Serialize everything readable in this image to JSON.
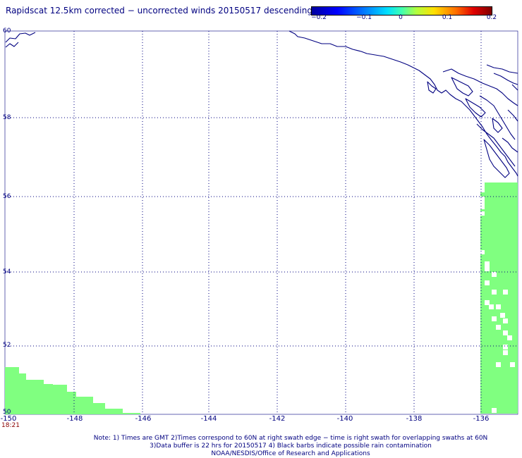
{
  "title": "Rapidscat 12.5km corrected − uncorrected winds 20150517 descending",
  "colorbar": {
    "labels": [
      "−0.2",
      "−0.1",
      "0",
      "0.1",
      "0.2"
    ],
    "colors": [
      "#0000a0",
      "#0000ff",
      "#00e0ff",
      "#b0ff40",
      "#ffe000",
      "#ff7000",
      "#800000"
    ]
  },
  "map": {
    "lat_labels": [
      "60",
      "58",
      "56",
      "54",
      "52",
      "50"
    ],
    "lon_labels": [
      "-150",
      "-148",
      "-146",
      "-144",
      "-142",
      "-140",
      "-138",
      "-136"
    ],
    "lat_range": [
      50,
      60
    ],
    "lon_range": [
      -150,
      -135
    ],
    "swath_color": "#80ff80",
    "coast_color": "#000080",
    "grid_color": "#000080",
    "time_label": "18:21"
  },
  "notes": {
    "line1": "Note: 1) Times are GMT 2)Times correspond to 60N at right swath edge − time is right swath for overlapping swaths at 60N",
    "line2": "3)Data buffer is 22 hrs for 20150517 4) Black barbs indicate possible rain contamination",
    "line3": "NOAA/NESDIS/Office of Research and Applications"
  }
}
